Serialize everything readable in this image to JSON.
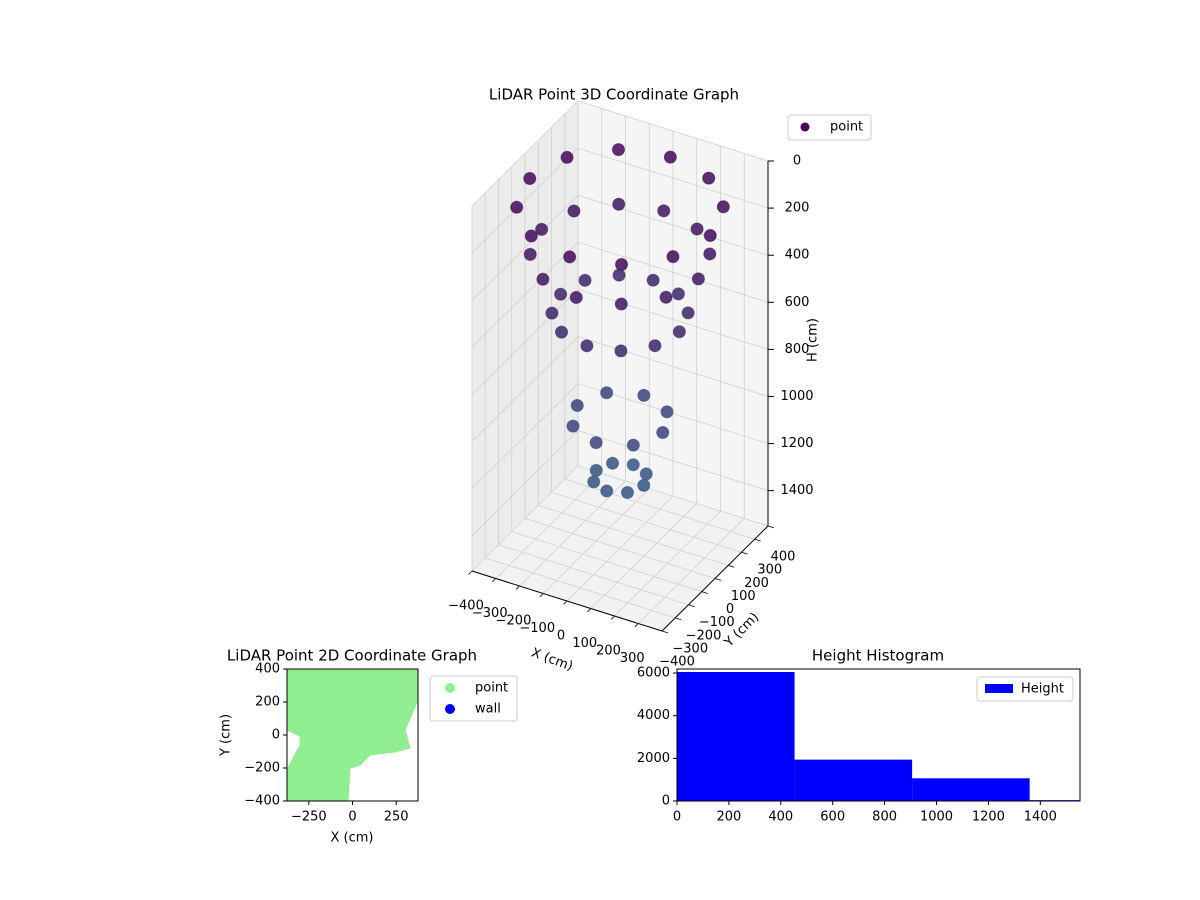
{
  "chart_data": [
    {
      "type": "scatter3d",
      "title": "LiDAR Point 3D Coordinate Graph",
      "x_label": "X (cm)",
      "y_label": "Y (cm)",
      "z_label": "H (cm)",
      "xlim": [
        -400,
        400
      ],
      "ylim": [
        -400,
        400
      ],
      "zlim": [
        1550,
        0
      ],
      "xticks": [
        {
          "value": -400,
          "label": "−400"
        },
        {
          "value": -300,
          "label": "−300"
        },
        {
          "value": -200,
          "label": "−200"
        },
        {
          "value": -100,
          "label": "−100"
        },
        0,
        100,
        200,
        300
      ],
      "yticks": [
        {
          "value": -400,
          "label": "−400"
        },
        {
          "value": -300,
          "label": "−300"
        },
        {
          "value": -200,
          "label": "−200"
        },
        {
          "value": -100,
          "label": "−100"
        },
        0,
        100,
        200,
        300,
        400
      ],
      "zticks": [
        0,
        200,
        400,
        600,
        800,
        1000,
        1200,
        1400
      ],
      "legend": "upper right",
      "cmap": "viridis",
      "series": [
        {
          "name": "point",
          "color": "#440154",
          "x": [
            380,
            329,
            190,
            0,
            -190,
            -329,
            -380,
            -329,
            -190,
            0,
            190,
            329,
            330,
            286,
            165,
            0,
            -165,
            -286,
            -330,
            -286,
            -165,
            0,
            165,
            286,
            250,
            217,
            125,
            0,
            -125,
            -217,
            -250,
            -217,
            -125,
            0,
            125,
            217,
            180,
            127,
            0,
            -127,
            -180,
            -127,
            0,
            127,
            100,
            71,
            0,
            -71,
            -100,
            -71,
            0,
            71
          ],
          "y": [
            0,
            190,
            329,
            380,
            329,
            190,
            0,
            -190,
            -329,
            -380,
            -329,
            -190,
            0,
            165,
            286,
            330,
            286,
            165,
            0,
            -165,
            -286,
            -330,
            -286,
            -165,
            0,
            125,
            217,
            250,
            217,
            125,
            0,
            -125,
            -217,
            -250,
            -217,
            -125,
            0,
            127,
            180,
            127,
            0,
            -127,
            -180,
            -127,
            0,
            71,
            100,
            71,
            0,
            -71,
            -100,
            -71
          ],
          "z": [
            100,
            100,
            100,
            100,
            100,
            100,
            100,
            100,
            100,
            100,
            100,
            100,
            300,
            300,
            300,
            300,
            300,
            300,
            300,
            300,
            300,
            300,
            300,
            300,
            550,
            550,
            550,
            550,
            550,
            550,
            550,
            550,
            550,
            550,
            550,
            550,
            1000,
            1000,
            1000,
            1000,
            1000,
            1000,
            1000,
            1000,
            1250,
            1250,
            1250,
            1250,
            1250,
            1250,
            1250,
            1250
          ]
        }
      ]
    },
    {
      "type": "scatter",
      "title": "LiDAR Point 2D Coordinate Graph",
      "x_label": "X (cm)",
      "y_label": "Y (cm)",
      "xlim": [
        -375,
        375
      ],
      "ylim": [
        -400,
        400
      ],
      "xticks": [
        {
          "value": -250,
          "label": "−250"
        },
        0,
        250
      ],
      "yticks": [
        {
          "value": -400,
          "label": "−400"
        },
        {
          "value": -200,
          "label": "−200"
        },
        0,
        200,
        400
      ],
      "legend": "outside right",
      "series": [
        {
          "name": "point",
          "color": "#90ee90",
          "x": [
            -375,
            375,
            375,
            301,
            330,
            244,
            101,
            43,
            -14,
            -26,
            -375,
            -375,
            -300,
            -300,
            -375
          ],
          "y": [
            400,
            400,
            212,
            30,
            -79,
            -103,
            -121,
            -182,
            -200,
            -400,
            -400,
            -212,
            -61,
            -6,
            30
          ]
        },
        {
          "name": "wall",
          "color": "#0000ff",
          "x": [],
          "y": []
        }
      ]
    },
    {
      "type": "histogram",
      "title": "Height Histogram",
      "name": "Height",
      "color": "#0000ff",
      "bins": [
        0,
        453,
        906,
        1359,
        1812
      ],
      "values": [
        6050,
        1940,
        1065,
        40
      ],
      "xlim": [
        0,
        1553
      ],
      "ylim": [
        0,
        6190
      ],
      "xticks": [
        0,
        200,
        400,
        600,
        800,
        1000,
        1200,
        1400
      ],
      "yticks": [
        0,
        2000,
        4000,
        6000
      ],
      "legend": "upper right"
    }
  ]
}
